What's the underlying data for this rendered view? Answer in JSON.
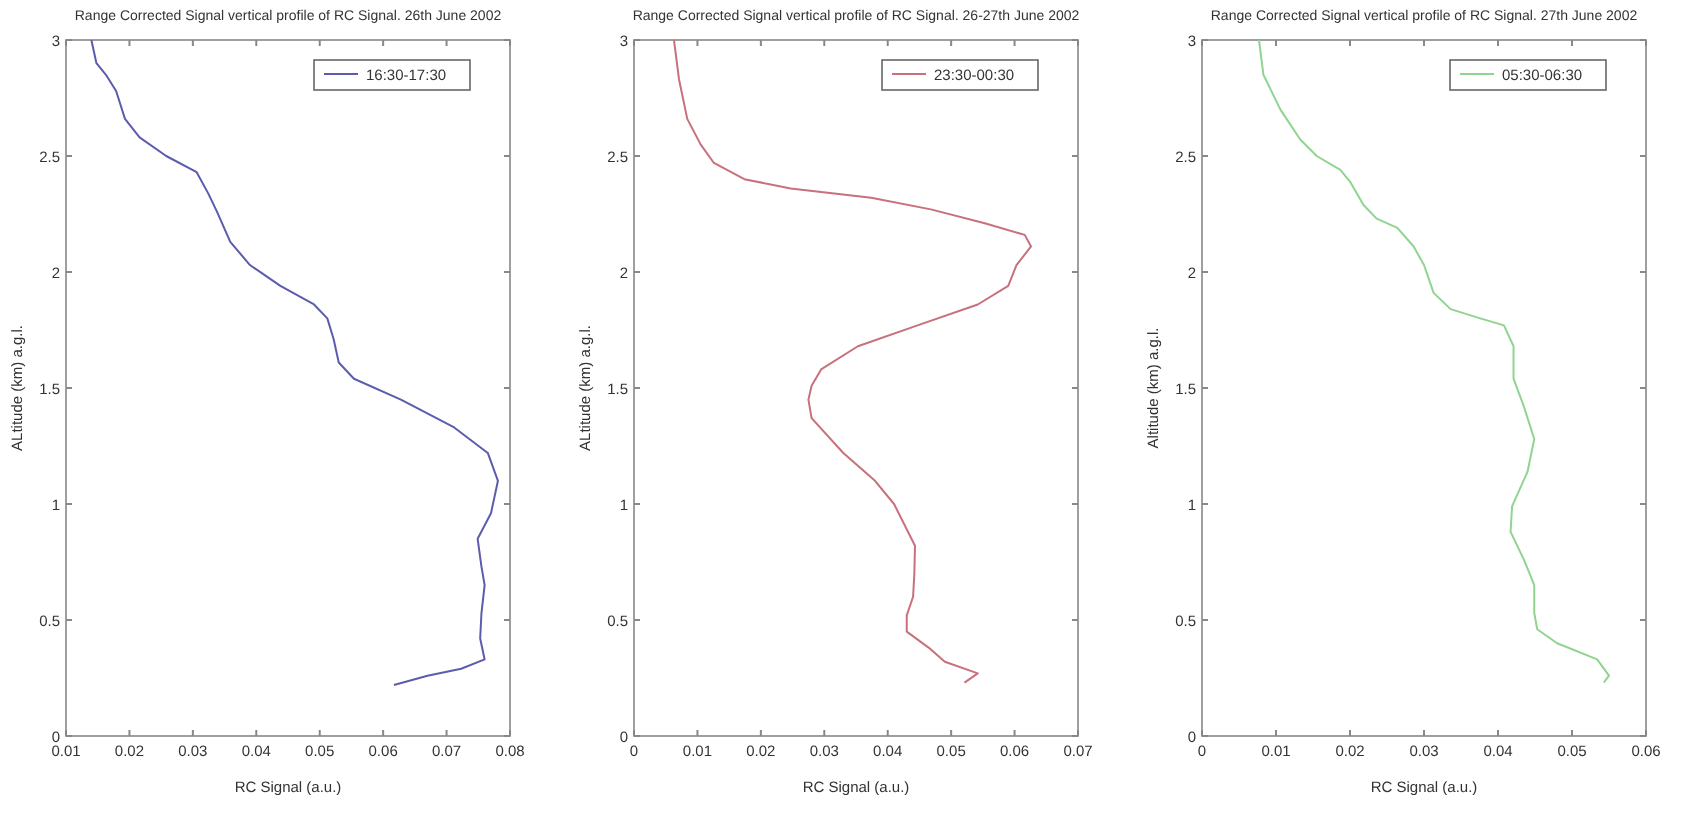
{
  "chart_data": [
    {
      "type": "line",
      "title": "Range Corrected Signal vertical profile of RC Signal. 26th June 2002",
      "xlabel": "RC Signal (a.u.)",
      "ylabel": "ALtitude (km) a.g.l.",
      "xlim": [
        0.01,
        0.08
      ],
      "xticks": [
        0.01,
        0.02,
        0.03,
        0.04,
        0.05,
        0.06,
        0.07,
        0.08
      ],
      "ylim": [
        0,
        3
      ],
      "yticks": [
        0,
        0.5,
        1,
        1.5,
        2,
        2.5,
        3
      ],
      "legend": "top right",
      "grid": false,
      "series": [
        {
          "name": "16:30-17:30",
          "color": "#5c5cae",
          "x": [
            0.014,
            0.0148,
            0.0163,
            0.0179,
            0.0193,
            0.0216,
            0.0258,
            0.0306,
            0.0324,
            0.0338,
            0.0359,
            0.039,
            0.0438,
            0.0491,
            0.0512,
            0.0522,
            0.053,
            0.0554,
            0.0628,
            0.0712,
            0.0765,
            0.0781,
            0.077,
            0.0749,
            0.0755,
            0.076,
            0.0755,
            0.0753,
            0.076,
            0.0723,
            0.067,
            0.0617
          ],
          "values": [
            3,
            2.9,
            2.85,
            2.78,
            2.66,
            2.58,
            2.5,
            2.43,
            2.34,
            2.26,
            2.13,
            2.03,
            1.94,
            1.86,
            1.8,
            1.71,
            1.61,
            1.54,
            1.45,
            1.33,
            1.22,
            1.1,
            0.96,
            0.85,
            0.73,
            0.65,
            0.53,
            0.42,
            0.33,
            0.29,
            0.26,
            0.22
          ]
        }
      ]
    },
    {
      "type": "line",
      "title": "Range Corrected Signal vertical profile of RC Signal. 26-27th June 2002",
      "xlabel": "RC Signal (a.u.)",
      "ylabel": "ALtitude (km) a.g.l.",
      "xlim": [
        0,
        0.07
      ],
      "xticks": [
        0,
        0.01,
        0.02,
        0.03,
        0.04,
        0.05,
        0.06,
        0.07
      ],
      "ylim": [
        0,
        3
      ],
      "yticks": [
        0,
        0.5,
        1,
        1.5,
        2,
        2.5,
        3
      ],
      "legend": "top right",
      "grid": false,
      "series": [
        {
          "name": "23:30-00:30",
          "color": "#c8707c",
          "x": [
            0.0063,
            0.0071,
            0.0084,
            0.0105,
            0.0126,
            0.0174,
            0.0247,
            0.0374,
            0.0468,
            0.0553,
            0.0616,
            0.0626,
            0.0603,
            0.059,
            0.0542,
            0.0447,
            0.0353,
            0.0295,
            0.028,
            0.0275,
            0.028,
            0.033,
            0.038,
            0.041,
            0.0443,
            0.0442,
            0.044,
            0.043,
            0.043,
            0.0465,
            0.049,
            0.0542,
            0.0521
          ],
          "values": [
            3,
            2.83,
            2.66,
            2.55,
            2.47,
            2.4,
            2.36,
            2.32,
            2.27,
            2.21,
            2.16,
            2.11,
            2.03,
            1.94,
            1.86,
            1.77,
            1.68,
            1.58,
            1.51,
            1.45,
            1.37,
            1.22,
            1.1,
            1,
            0.82,
            0.7,
            0.6,
            0.52,
            0.45,
            0.38,
            0.32,
            0.27,
            0.23
          ]
        }
      ]
    },
    {
      "type": "line",
      "title": "Range Corrected Signal vertical profile of RC Signal. 27th June 2002",
      "xlabel": "RC Signal (a.u.)",
      "ylabel": "Altitude (km) a.g.l.",
      "xlim": [
        0,
        0.06
      ],
      "xticks": [
        0,
        0.01,
        0.02,
        0.03,
        0.04,
        0.05,
        0.06
      ],
      "ylim": [
        0,
        3
      ],
      "yticks": [
        0,
        0.5,
        1,
        1.5,
        2,
        2.5,
        3
      ],
      "legend": "top right",
      "grid": false,
      "series": [
        {
          "name": "05:30-06:30",
          "color": "#90d490",
          "x": [
            0.0077,
            0.0083,
            0.0106,
            0.0133,
            0.0155,
            0.0187,
            0.02,
            0.0218,
            0.0236,
            0.0264,
            0.0286,
            0.03,
            0.0313,
            0.0336,
            0.0376,
            0.0408,
            0.0421,
            0.0421,
            0.0421,
            0.0435,
            0.0449,
            0.044,
            0.0419,
            0.0417,
            0.0435,
            0.0449,
            0.0449,
            0.0453,
            0.048,
            0.0534,
            0.055,
            0.0543
          ],
          "values": [
            3,
            2.85,
            2.7,
            2.57,
            2.5,
            2.44,
            2.39,
            2.29,
            2.23,
            2.19,
            2.11,
            2.03,
            1.91,
            1.84,
            1.8,
            1.77,
            1.68,
            1.61,
            1.54,
            1.42,
            1.28,
            1.14,
            0.99,
            0.88,
            0.76,
            0.65,
            0.53,
            0.46,
            0.4,
            0.33,
            0.26,
            0.23
          ]
        }
      ]
    }
  ]
}
